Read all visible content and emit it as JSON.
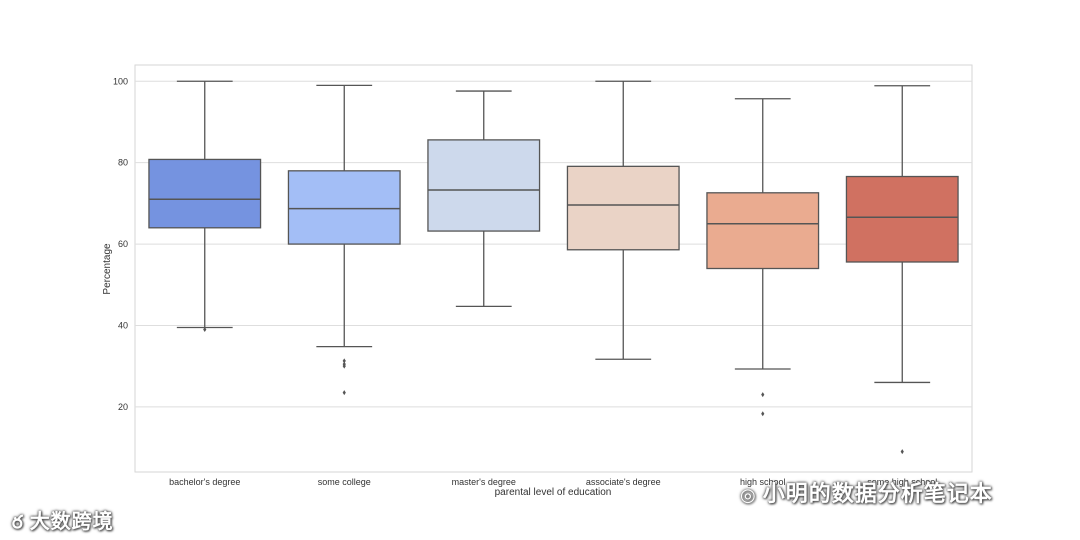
{
  "chart_data": {
    "type": "box",
    "title": "",
    "xlabel": "parental level of education",
    "ylabel": "Percentage",
    "ylim": [
      4,
      104
    ],
    "yticks": [
      20,
      40,
      60,
      80,
      100
    ],
    "grid": true,
    "categories": [
      "bachelor's degree",
      "some college",
      "master's degree",
      "associate's degree",
      "high school",
      "some high school"
    ],
    "boxes": [
      {
        "category": "bachelor's degree",
        "whisker_low": 39.5,
        "q1": 64,
        "median": 71,
        "q3": 80.8,
        "whisker_high": 100,
        "outliers": [
          39
        ],
        "color": "#7593e0"
      },
      {
        "category": "some college",
        "whisker_low": 34.8,
        "q1": 60,
        "median": 68.7,
        "q3": 78,
        "whisker_high": 99,
        "outliers": [
          31.3,
          30.5,
          30,
          23.5
        ],
        "color": "#a3bef6"
      },
      {
        "category": "master's degree",
        "whisker_low": 44.7,
        "q1": 63.2,
        "median": 73.3,
        "q3": 85.6,
        "whisker_high": 97.6,
        "outliers": [],
        "color": "#cdd9ec"
      },
      {
        "category": "associate's degree",
        "whisker_low": 31.7,
        "q1": 58.6,
        "median": 69.6,
        "q3": 79.1,
        "whisker_high": 100,
        "outliers": [],
        "color": "#ead3c6"
      },
      {
        "category": "high school",
        "whisker_low": 29.3,
        "q1": 54,
        "median": 65,
        "q3": 72.6,
        "whisker_high": 95.7,
        "outliers": [
          23,
          18.3
        ],
        "color": "#eaab90"
      },
      {
        "category": "some high school",
        "whisker_low": 26,
        "q1": 55.6,
        "median": 66.6,
        "q3": 76.6,
        "whisker_high": 98.9,
        "outliers": [
          9
        ],
        "color": "#d07161"
      }
    ]
  },
  "watermarks": {
    "left_text": "大数跨境",
    "left_icon": "weibo-icon",
    "right_text": "小明的数据分析笔记本",
    "right_icon": "wechat-icon"
  }
}
